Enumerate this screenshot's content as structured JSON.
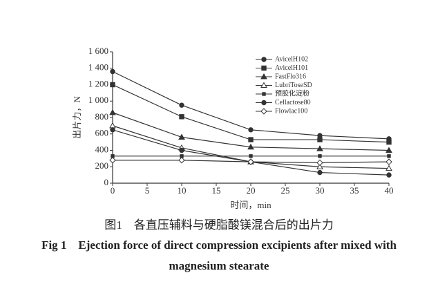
{
  "chart_data": {
    "type": "line",
    "title": "图1　各直压辅料与硬脂酸镁混合后的出片力",
    "subtitle": "Fig 1　Ejection force of direct compression excipients after mixed with magnesium stearate",
    "x_label": "时间，min",
    "y_label": "出片力，N",
    "x": [
      0,
      10,
      20,
      30,
      40
    ],
    "xlim": [
      0,
      40
    ],
    "xticks": [
      0,
      5,
      10,
      15,
      20,
      25,
      30,
      35,
      40
    ],
    "ylim": [
      0,
      1600
    ],
    "yticks": [
      0,
      200,
      400,
      600,
      800,
      {
        "value": 1000,
        "label": "1 000"
      },
      {
        "value": 1200,
        "label": "1 200"
      },
      {
        "value": 1400,
        "label": "1 400"
      },
      {
        "value": 1600,
        "label": "1 600"
      }
    ],
    "legend": "upper right",
    "series": [
      {
        "name": "AvicelH102",
        "color": "#333333",
        "marker": "circle",
        "values": [
          1360,
          950,
          650,
          580,
          540
        ]
      },
      {
        "name": "AvicelH101",
        "color": "#333333",
        "marker": "square",
        "values": [
          1200,
          810,
          530,
          530,
          500
        ]
      },
      {
        "name": "FastFlo316",
        "color": "#333333",
        "marker": "triangle",
        "values": [
          860,
          560,
          440,
          420,
          400
        ]
      },
      {
        "name": "LubriToseSD",
        "color": "#333333",
        "marker": "triangle-open",
        "values": [
          700,
          430,
          260,
          200,
          180
        ]
      },
      {
        "name": "预胶化淀粉",
        "color": "#333333",
        "marker": "square-small",
        "values": [
          330,
          330,
          330,
          330,
          330
        ]
      },
      {
        "name": "Cellactose80",
        "color": "#333333",
        "marker": "circle",
        "values": [
          650,
          400,
          260,
          130,
          100
        ]
      },
      {
        "name": "Flowlac100",
        "color": "#333333",
        "marker": "diamond-open",
        "values": [
          280,
          280,
          260,
          250,
          260
        ]
      }
    ]
  }
}
